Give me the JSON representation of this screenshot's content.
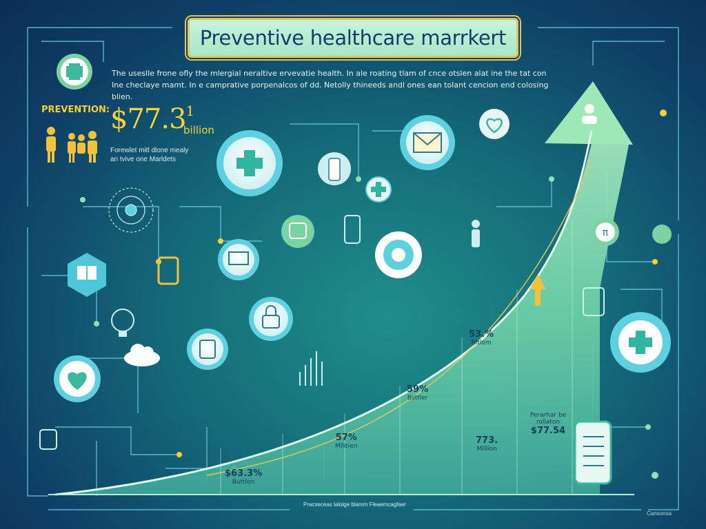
{
  "title": "Preventive healthcare marrkert",
  "intro": {
    "line1": "The useslle frone ofly the mlergial neraltive ervevatie health. In ale roating tlam of cnce otslen alat ine the tat con",
    "line2": "Ine checlaye mamt. In e camprative porpenalcos of dd. Netolly thineeds andl ones ean tolant cencion end colosing blien."
  },
  "prevention": {
    "label": "PREVENTION:",
    "value": "$77.3",
    "superscript": "1",
    "unit": "billion",
    "note_line1": "Forewlet mitl dlone mealy",
    "note_line2": "an tvive one Marldets"
  },
  "stats": [
    {
      "value": "$63.3%",
      "unit": "Buttlon"
    },
    {
      "value": "57%",
      "unit": "Mllitien"
    },
    {
      "value": "59%",
      "unit": "Bsttler"
    },
    {
      "value": "53.%",
      "unit": "Bltlom"
    },
    {
      "value": "773.",
      "unit": "Mllllon"
    },
    {
      "value": "$77.54",
      "unit": "Perarhar be rollaton",
      "unit2": ""
    }
  ],
  "footer": "Pracseceas lalolge blamm Fleaemcagfaer",
  "corner": "Cansonsa",
  "colors": {
    "accent_gold": "#f6d33a",
    "curve_top": "#9ee8b8",
    "node_ring": "#5fd0e0",
    "line": "#8fe0d8"
  },
  "icons": [
    "plus-icon",
    "family-icon",
    "mail-icon",
    "heart-icon",
    "user-icon",
    "gear-icon",
    "cloud-icon",
    "tablet-icon",
    "phone-icon",
    "lock-icon",
    "laptop-icon",
    "checklist-icon",
    "arrow-up-icon",
    "bottle-icon",
    "bulb-icon",
    "pi-icon"
  ]
}
